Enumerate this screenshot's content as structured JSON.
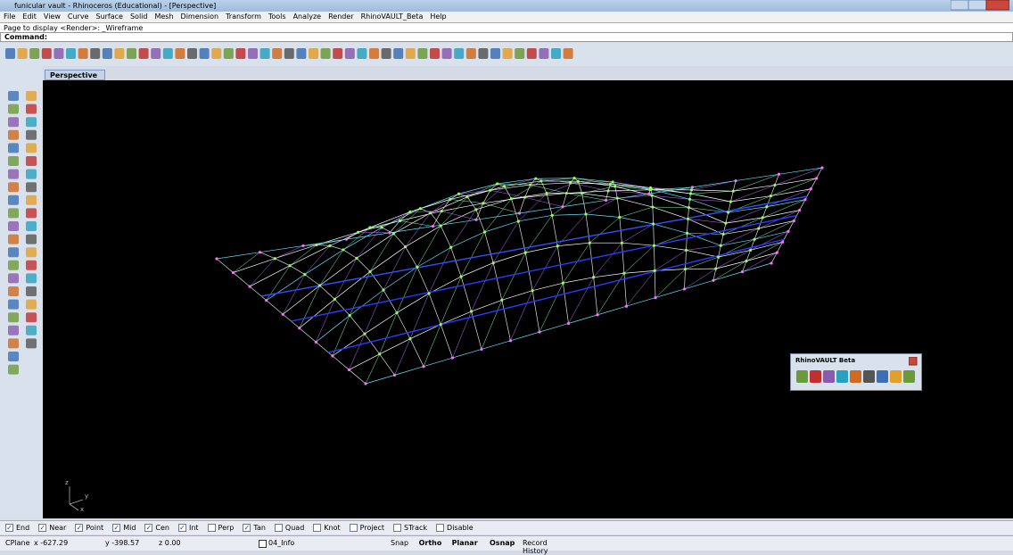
{
  "window": {
    "title": "funicular vault - Rhinoceros (Educational) - [Perspective]"
  },
  "menu": [
    "File",
    "Edit",
    "View",
    "Curve",
    "Surface",
    "Solid",
    "Mesh",
    "Dimension",
    "Transform",
    "Tools",
    "Analyze",
    "Render",
    "RhinoVAULT_Beta",
    "Help"
  ],
  "command": {
    "history": "Page to display <Render>: _Wireframe",
    "prompt": "Command:"
  },
  "viewport": {
    "label": "Perspective",
    "axes": [
      "z",
      "y",
      "x"
    ]
  },
  "panel": {
    "title": "RhinoVAULT Beta"
  },
  "osnap": [
    {
      "label": "End",
      "checked": true
    },
    {
      "label": "Near",
      "checked": true
    },
    {
      "label": "Point",
      "checked": true
    },
    {
      "label": "Mid",
      "checked": true
    },
    {
      "label": "Cen",
      "checked": true
    },
    {
      "label": "Int",
      "checked": true
    },
    {
      "label": "Perp",
      "checked": false
    },
    {
      "label": "Tan",
      "checked": true
    },
    {
      "label": "Quad",
      "checked": false
    },
    {
      "label": "Knot",
      "checked": false
    },
    {
      "label": "Project",
      "checked": false
    },
    {
      "label": "STrack",
      "checked": false
    },
    {
      "label": "Disable",
      "checked": false
    }
  ],
  "status": {
    "cplane": "CPlane",
    "x": "x -627.29",
    "y": "y -398.57",
    "z": "z 0.00",
    "layer": "04_Info",
    "toggles": [
      "Snap",
      "Ortho",
      "Planar",
      "Osnap",
      "Record History"
    ]
  }
}
